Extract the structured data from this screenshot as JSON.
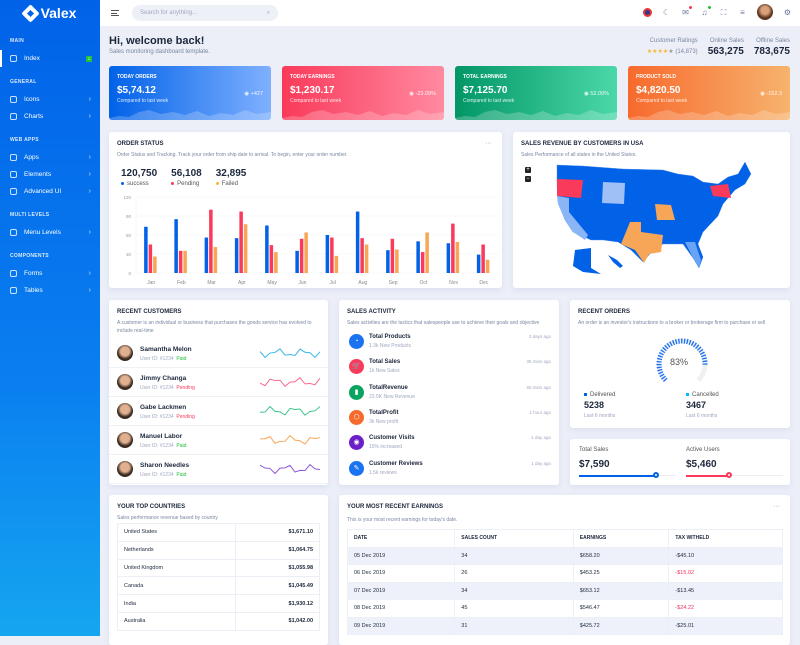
{
  "app": {
    "name": "Valex"
  },
  "sidebar": {
    "sections": [
      {
        "title": "MAIN",
        "items": [
          {
            "label": "Index",
            "badge": "1",
            "active": true
          }
        ]
      },
      {
        "title": "GENERAL",
        "items": [
          {
            "label": "Icons"
          },
          {
            "label": "Charts"
          }
        ]
      },
      {
        "title": "WEB APPS",
        "items": [
          {
            "label": "Apps"
          },
          {
            "label": "Elements"
          },
          {
            "label": "Advanced UI"
          }
        ]
      },
      {
        "title": "MULTI LEVELS",
        "items": [
          {
            "label": "Menu Levels"
          }
        ]
      },
      {
        "title": "COMPONENTS",
        "items": [
          {
            "label": "Forms"
          },
          {
            "label": "Tables"
          }
        ]
      }
    ]
  },
  "header": {
    "search_placeholder": "Search for anything...",
    "icons": [
      "uk-flag-icon",
      "moon-icon",
      "mail-icon",
      "bell-icon",
      "fullscreen-icon",
      "menu-icon",
      "avatar",
      "gear-icon"
    ]
  },
  "welcome": {
    "title": "Hi, welcome back!",
    "subtitle": "Sales monitoring dashboard template."
  },
  "kpis": {
    "ratings_label": "Customer Ratings",
    "ratings_stars": 4,
    "ratings_count": "(14,873)",
    "online_label": "Online Sales",
    "online_value": "563,275",
    "offline_label": "Offline Sales",
    "offline_value": "783,675"
  },
  "stats": [
    {
      "title": "TODAY ORDERS",
      "value": "$5,74.12",
      "sub": "Compared to last week",
      "change": "+427",
      "color": "#0162e8"
    },
    {
      "title": "TODAY EARNINGS",
      "value": "$1,230.17",
      "sub": "Compared to last week",
      "change": "-23.09%",
      "color": "#f93a5a"
    },
    {
      "title": "TOTAL EARNINGS",
      "value": "$7,125.70",
      "sub": "Compared to last week",
      "change": "52.09%",
      "color": "#029666"
    },
    {
      "title": "PRODUCT SOLD",
      "value": "$4,820.50",
      "sub": "Compared to last week",
      "change": "-152.3",
      "color": "#f76a2d"
    }
  ],
  "order_status": {
    "title": "ORDER STATUS",
    "subtitle": "Order Status and Tracking. Track your order from ship date to arrival. To begin, enter your order number.",
    "totals": [
      {
        "value": "120,750",
        "label": "success",
        "color": "#0162e8"
      },
      {
        "value": "56,108",
        "label": "Pending",
        "color": "#f93a5a"
      },
      {
        "value": "32,895",
        "label": "Failed",
        "color": "#f7b731"
      }
    ]
  },
  "chart_data": {
    "type": "bar",
    "categories": [
      "Jan",
      "Feb",
      "Mar",
      "Apr",
      "May",
      "Jun",
      "Jul",
      "Aug",
      "Sep",
      "Oct",
      "Nov",
      "Dec"
    ],
    "ylim": [
      0,
      120
    ],
    "yticks": [
      0,
      30,
      60,
      90,
      120
    ],
    "grid": true,
    "series": [
      {
        "name": "success",
        "color": "#0162e8",
        "values": [
          73,
          85,
          56,
          55,
          75,
          35,
          60,
          97,
          36,
          50,
          47,
          29
        ]
      },
      {
        "name": "Pending",
        "color": "#f93a5a",
        "values": [
          45,
          35,
          100,
          97,
          44,
          54,
          56,
          55,
          54,
          33,
          78,
          45
        ]
      },
      {
        "name": "Failed",
        "color": "#f7a556",
        "values": [
          26,
          35,
          41,
          77,
          33,
          64,
          27,
          45,
          37,
          64,
          49,
          21
        ]
      }
    ]
  },
  "map": {
    "title": "SALES REVENUE BY CUSTOMERS IN USA",
    "subtitle": "Sales Performance of all states in the United States.",
    "zoom_in": "+",
    "zoom_out": "−"
  },
  "recent_customers": {
    "title": "RECENT CUSTOMERS",
    "subtitle": "A customer is an individual or business that purchases the goods service has evolved to include real-time",
    "items": [
      {
        "name": "Samantha Melon",
        "id": "User ID: #1234",
        "status": "Paid",
        "color": "#38b6e8"
      },
      {
        "name": "Jimmy Changa",
        "id": "User ID: #1234",
        "status": "Pending",
        "color": "#f76a8a"
      },
      {
        "name": "Gabe Lackmen",
        "id": "User ID: #1234",
        "status": "Pending",
        "color": "#3ec48a"
      },
      {
        "name": "Manuel Labor",
        "id": "User ID: #1234",
        "status": "Paid",
        "color": "#f7a556"
      },
      {
        "name": "Sharon Needles",
        "id": "User ID: #1234",
        "status": "Paid",
        "color": "#8a5ad6"
      }
    ]
  },
  "sales_activity": {
    "title": "SALES ACTIVITY",
    "subtitle": "Sales activities are the tactics that salespeople use to achieve their goals and objective",
    "items": [
      {
        "name": "Total Products",
        "desc": "1.3k New Products",
        "time": "3 days ago",
        "color": "#1a73f0",
        "icon": "pie-chart-icon"
      },
      {
        "name": "Total Sales",
        "desc": "1k New Sales",
        "time": "35 mins ago",
        "color": "#f93a5a",
        "icon": "cart-icon"
      },
      {
        "name": "TotalRevenue",
        "desc": "23.5K New Revenue",
        "time": "50 mins ago",
        "color": "#0ba360",
        "icon": "bar-chart-icon"
      },
      {
        "name": "TotalProfit",
        "desc": "3k New profit",
        "time": "1 hour ago",
        "color": "#f76a2d",
        "icon": "box-icon"
      },
      {
        "name": "Customer Visits",
        "desc": "15% increased",
        "time": "1 day ago",
        "color": "#6c1ec9",
        "icon": "eye-icon"
      },
      {
        "name": "Customer Reviews",
        "desc": "1.5k reviews",
        "time": "1 day ago",
        "color": "#1a73f0",
        "icon": "edit-icon"
      }
    ]
  },
  "recent_orders": {
    "title": "RECENT ORDERS",
    "subtitle": "An order is an investor's instructions to a broker or brokerage firm to purchase or sell",
    "percent": 83,
    "percent_label": "83%",
    "delivered": {
      "label": "Delivered",
      "value": "5238",
      "sub": "Last 6 months",
      "color": "#0162e8"
    },
    "cancelled": {
      "label": "Cancelled",
      "value": "3467",
      "sub": "Last 6 months",
      "color": "#00b9ff"
    }
  },
  "totals": {
    "sales_label": "Total Sales",
    "sales_value": "$7,590",
    "sales_progress": 0.79,
    "users_label": "Active Users",
    "users_value": "$5,460",
    "users_progress": 0.44
  },
  "countries": {
    "title": "YOUR TOP COUNTRIES",
    "subtitle": "Sales performance revenue based by country",
    "rows": [
      [
        "United States",
        "$1,671.10"
      ],
      [
        "Netherlands",
        "$1,064.75"
      ],
      [
        "United Kingdom",
        "$1,055.98"
      ],
      [
        "Canada",
        "$1,045.49"
      ],
      [
        "India",
        "$1,930.12"
      ],
      [
        "Australia",
        "$1,042.00"
      ]
    ]
  },
  "earnings": {
    "title": "YOUR MOST RECENT EARNINGS",
    "subtitle": "This is your most recent earnings for today's date.",
    "headers": [
      "DATE",
      "SALES COUNT",
      "EARNINGS",
      "TAX WITHELD"
    ],
    "rows": [
      [
        "05 Dec 2019",
        "34",
        "$658.20",
        "-$45.10"
      ],
      [
        "06 Dec 2019",
        "26",
        "$453.25",
        "-$15.02"
      ],
      [
        "07 Dec 2019",
        "34",
        "$653.12",
        "-$13.45"
      ],
      [
        "08 Dec 2019",
        "45",
        "$546.47",
        "-$24.22"
      ],
      [
        "09 Dec 2019",
        "31",
        "$425.72",
        "-$25.01"
      ]
    ],
    "negative_highlight": [
      false,
      true,
      false,
      true,
      false
    ]
  }
}
